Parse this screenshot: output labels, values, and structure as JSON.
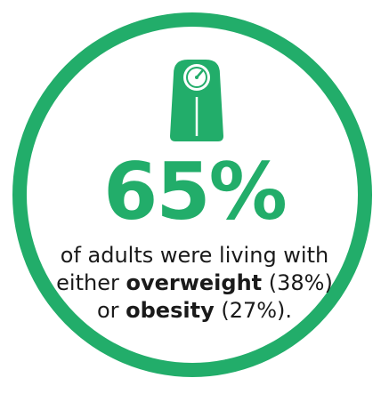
{
  "colors": {
    "accent": "#22ad6a",
    "text": "#1a1a1a"
  },
  "icon": "bathroom-scale-icon",
  "stat": {
    "value": "65%"
  },
  "description": {
    "line1": "of adults were living with",
    "line2_pre": "either ",
    "line2_bold": "overweight",
    "line2_post": " (38%)",
    "line3_pre": "or ",
    "line3_bold": "obesity",
    "line3_post": " (27%)."
  }
}
